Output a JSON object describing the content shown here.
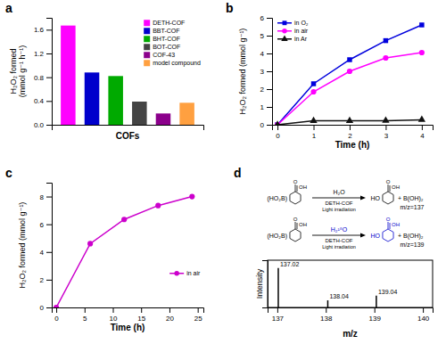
{
  "chart_data": [
    {
      "type": "bar",
      "title": "a",
      "categories": [
        "DETH-COF",
        "BBT-COF",
        "BHT-COF",
        "BOT-COF",
        "COF-43",
        "model compound"
      ],
      "values": [
        1.67,
        0.88,
        0.82,
        0.39,
        0.19,
        0.37
      ],
      "colors": [
        "#FF00FF",
        "#0000CC",
        "#00AA00",
        "#444444",
        "#8B008B",
        "#FFA040"
      ],
      "xlabel": "COFs",
      "ylabel": "H₂O₂ formed\n(mmol g⁻¹ h⁻¹)",
      "ylim": [
        0,
        1.8
      ],
      "yticks": [
        {
          "value": 0.0,
          "label": "0.0"
        },
        0.4,
        0.8,
        1.2,
        1.6
      ],
      "legend": "upper right",
      "tick_labels": "y"
    },
    {
      "type": "line",
      "title": "b",
      "x": [
        0,
        1,
        2,
        3,
        4
      ],
      "series": [
        {
          "name": "in O₂",
          "color": "#0000DD",
          "marker": "square",
          "values": [
            0,
            2.3,
            3.65,
            4.72,
            5.6
          ]
        },
        {
          "name": "in air",
          "color": "#FF00FF",
          "marker": "circle",
          "values": [
            0,
            1.85,
            3.0,
            3.75,
            4.05
          ]
        },
        {
          "name": "in Ar",
          "color": "#111111",
          "marker": "triangle",
          "values": [
            0,
            0.22,
            0.22,
            0.23,
            0.28
          ]
        }
      ],
      "xlabel": "Time (h)",
      "ylabel": "H₂O₂ formed (mmol g⁻¹)",
      "xlim": [
        -0.15,
        4.3
      ],
      "xticks": [
        0,
        1,
        2,
        3,
        4
      ],
      "ylim": [
        0,
        6
      ],
      "yticks": [
        0,
        1,
        2,
        3,
        4,
        5,
        6
      ],
      "legend": "upper left"
    },
    {
      "type": "line",
      "title": "c",
      "x": [
        0,
        6,
        12,
        18,
        24
      ],
      "series": [
        {
          "name": "in air",
          "color": "#CC00CC",
          "marker": "circle",
          "values": [
            0,
            4.6,
            6.35,
            7.35,
            8.0
          ]
        }
      ],
      "xlabel": "Time (h)",
      "ylabel": "H₂O₂ formed (mmol g⁻¹)",
      "xlim": [
        -0.8,
        26
      ],
      "xticks": [
        0,
        5,
        10,
        15,
        20,
        25
      ],
      "ylim": [
        0,
        9
      ],
      "yticks": [
        0,
        2,
        4,
        6,
        8
      ],
      "legend": "lower right"
    },
    {
      "type": "scheme",
      "title": "d",
      "annotations": [
        {
          "reactant": [
            "(HO₂B)",
            "O",
            "OH"
          ],
          "reagent": "H₂O",
          "catalyst": "DETH-COF",
          "condition": "Light irradiation",
          "product": [
            "HO",
            "O",
            "OH"
          ],
          "byproduct": "+ B(OH)₂",
          "product_label": "m/z=137",
          "color": "#000000"
        },
        {
          "reactant": [
            "(HO₂B)",
            "O",
            "OH"
          ],
          "reagent": "H₂¹⁸O",
          "catalyst": "DETH-COF",
          "condition": "Light irradiation",
          "product": [
            "HO",
            "O",
            "OH"
          ],
          "byproduct": "+ B(OH)₂",
          "product_label": "m/z=139",
          "color": "#0000CC"
        }
      ]
    },
    {
      "type": "stem",
      "x": [
        137.02,
        138.04,
        139.04
      ],
      "values": [
        100,
        18,
        30
      ],
      "annotations": [
        "137.02",
        "138.04",
        "139.04"
      ],
      "xlabel": "m/z",
      "ylabel": "Intensity",
      "xlim": [
        136.8,
        140.2
      ],
      "xticks": [
        137,
        138,
        139,
        140
      ],
      "ylim": [
        0,
        120
      ],
      "yticks": [],
      "tick_labels": "x"
    }
  ]
}
